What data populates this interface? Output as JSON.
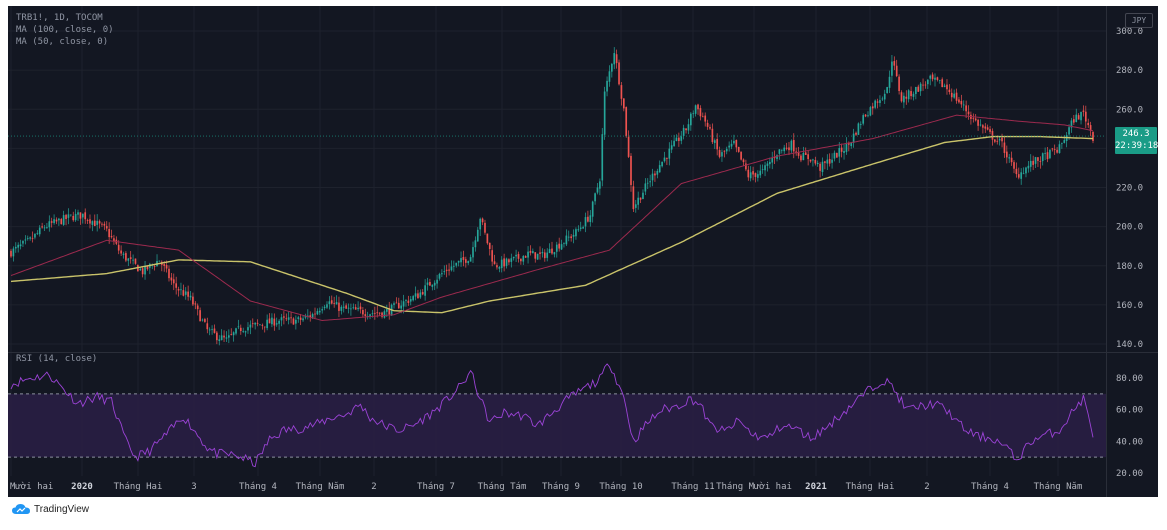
{
  "legend": {
    "symbol": "TRB1!, 1D, TOCOM",
    "ma100": "MA (100, close, 0)",
    "ma50": "MA (50, close, 0)",
    "rsi": "RSI (14, close)"
  },
  "currency": "JPY",
  "last_price": {
    "value": "246.3",
    "countdown": "22:39:18"
  },
  "brand": "TradingView",
  "colors": {
    "background": "#131722",
    "up": "#26a69a",
    "down": "#ef5350",
    "ma100": "#c9c36a",
    "ma50": "#9c2a4e",
    "rsi": "#9b43d6",
    "rsi_band": "#2a1f45",
    "badge": "#1a9c87"
  },
  "chart_data": [
    {
      "type": "candlestick",
      "title": "TRB1!, 1D, TOCOM",
      "y_axis": {
        "range": [
          135,
          305
        ],
        "ticks": [
          "300.0",
          "280.0",
          "260.0",
          "240.0",
          "220.0",
          "200.0",
          "180.0",
          "160.0",
          "140.0"
        ],
        "unit": "JPY"
      },
      "x_axis": {
        "ticks": [
          "Mười hai",
          "2020",
          "Tháng Hai",
          "3",
          "Tháng 4",
          "Tháng Năm",
          "2",
          "Tháng 7",
          "Tháng Tám",
          "Tháng 9",
          "Tháng 10",
          "Tháng 11",
          "Tháng Mười hai",
          "2021",
          "Tháng Hai",
          "2",
          "Tháng 4",
          "Tháng Năm"
        ]
      },
      "price_path": [
        [
          0,
          187
        ],
        [
          8,
          193
        ],
        [
          14,
          200
        ],
        [
          25,
          205
        ],
        [
          30,
          206
        ],
        [
          40,
          198
        ],
        [
          46,
          186
        ],
        [
          55,
          177
        ],
        [
          62,
          183
        ],
        [
          68,
          170
        ],
        [
          75,
          163
        ],
        [
          82,
          147
        ],
        [
          86,
          144
        ],
        [
          90,
          142
        ],
        [
          96,
          148
        ],
        [
          104,
          150
        ],
        [
          112,
          152
        ],
        [
          120,
          152
        ],
        [
          126,
          155
        ],
        [
          132,
          162
        ],
        [
          138,
          158
        ],
        [
          144,
          157
        ],
        [
          150,
          156
        ],
        [
          156,
          156
        ],
        [
          162,
          160
        ],
        [
          170,
          165
        ],
        [
          176,
          172
        ],
        [
          182,
          178
        ],
        [
          188,
          182
        ],
        [
          192,
          185
        ],
        [
          196,
          205
        ],
        [
          198,
          196
        ],
        [
          202,
          180
        ],
        [
          208,
          182
        ],
        [
          216,
          186
        ],
        [
          222,
          185
        ],
        [
          228,
          190
        ],
        [
          236,
          197
        ],
        [
          242,
          206
        ],
        [
          246,
          225
        ],
        [
          248,
          268
        ],
        [
          252,
          290
        ],
        [
          256,
          260
        ],
        [
          260,
          210
        ],
        [
          264,
          218
        ],
        [
          270,
          230
        ],
        [
          276,
          240
        ],
        [
          282,
          250
        ],
        [
          286,
          262
        ],
        [
          290,
          254
        ],
        [
          296,
          236
        ],
        [
          302,
          242
        ],
        [
          308,
          226
        ],
        [
          314,
          228
        ],
        [
          320,
          238
        ],
        [
          326,
          242
        ],
        [
          330,
          236
        ],
        [
          334,
          235
        ],
        [
          338,
          230
        ],
        [
          344,
          236
        ],
        [
          350,
          242
        ],
        [
          356,
          256
        ],
        [
          360,
          262
        ],
        [
          366,
          270
        ],
        [
          368,
          286
        ],
        [
          372,
          265
        ],
        [
          378,
          270
        ],
        [
          384,
          275
        ],
        [
          390,
          272
        ],
        [
          396,
          264
        ],
        [
          402,
          255
        ],
        [
          408,
          248
        ],
        [
          414,
          242
        ],
        [
          420,
          226
        ],
        [
          426,
          232
        ],
        [
          432,
          236
        ],
        [
          438,
          240
        ],
        [
          444,
          255
        ],
        [
          448,
          258
        ],
        [
          452,
          246
        ]
      ],
      "series": [
        {
          "name": "MA (100, close, 0)",
          "values": [
            [
              0,
              172
            ],
            [
              40,
              176
            ],
            [
              70,
              183
            ],
            [
              100,
              182
            ],
            [
              140,
              166
            ],
            [
              160,
              157
            ],
            [
              180,
              156
            ],
            [
              200,
              162
            ],
            [
              240,
              170
            ],
            [
              280,
              192
            ],
            [
              320,
              217
            ],
            [
              360,
              232
            ],
            [
              390,
              243
            ],
            [
              410,
              246
            ],
            [
              430,
              246
            ],
            [
              452,
              245
            ]
          ]
        },
        {
          "name": "MA (50, close, 0)",
          "values": [
            [
              0,
              175
            ],
            [
              40,
              193
            ],
            [
              70,
              188
            ],
            [
              100,
              162
            ],
            [
              130,
              152
            ],
            [
              160,
              155
            ],
            [
              180,
              164
            ],
            [
              220,
              178
            ],
            [
              250,
              188
            ],
            [
              280,
              222
            ],
            [
              320,
              236
            ],
            [
              360,
              245
            ],
            [
              395,
              257
            ],
            [
              420,
              254
            ],
            [
              440,
              252
            ],
            [
              452,
              249
            ]
          ]
        }
      ],
      "last_value": 246.3
    },
    {
      "type": "line",
      "title": "RSI (14, close)",
      "y_axis": {
        "range": [
          15,
          95
        ],
        "ticks": [
          "80.00",
          "60.00",
          "40.00",
          "20.00"
        ],
        "band": [
          30,
          70
        ]
      },
      "series": [
        {
          "name": "RSI (14, close)",
          "values": [
            [
              0,
              76
            ],
            [
              8,
              80
            ],
            [
              16,
              82
            ],
            [
              22,
              73
            ],
            [
              28,
              64
            ],
            [
              36,
              68
            ],
            [
              42,
              65
            ],
            [
              48,
              40
            ],
            [
              52,
              30
            ],
            [
              58,
              34
            ],
            [
              66,
              46
            ],
            [
              72,
              56
            ],
            [
              76,
              48
            ],
            [
              82,
              36
            ],
            [
              86,
              32
            ],
            [
              90,
              32
            ],
            [
              96,
              30
            ],
            [
              102,
              26
            ],
            [
              108,
              41
            ],
            [
              114,
              47
            ],
            [
              120,
              48
            ],
            [
              128,
              51
            ],
            [
              134,
              55
            ],
            [
              140,
              57
            ],
            [
              146,
              63
            ],
            [
              150,
              55
            ],
            [
              156,
              50
            ],
            [
              162,
              47
            ],
            [
              168,
              50
            ],
            [
              176,
              58
            ],
            [
              182,
              66
            ],
            [
              188,
              75
            ],
            [
              192,
              84
            ],
            [
              196,
              67
            ],
            [
              200,
              52
            ],
            [
              206,
              58
            ],
            [
              214,
              56
            ],
            [
              220,
              50
            ],
            [
              226,
              58
            ],
            [
              232,
              66
            ],
            [
              238,
              72
            ],
            [
              246,
              79
            ],
            [
              250,
              90
            ],
            [
              256,
              68
            ],
            [
              260,
              40
            ],
            [
              266,
              52
            ],
            [
              272,
              60
            ],
            [
              278,
              62
            ],
            [
              284,
              67
            ],
            [
              288,
              63
            ],
            [
              292,
              50
            ],
            [
              298,
              46
            ],
            [
              304,
              53
            ],
            [
              310,
              44
            ],
            [
              316,
              42
            ],
            [
              322,
              50
            ],
            [
              328,
              48
            ],
            [
              334,
              42
            ],
            [
              340,
              48
            ],
            [
              346,
              56
            ],
            [
              352,
              64
            ],
            [
              358,
              72
            ],
            [
              364,
              79
            ],
            [
              368,
              75
            ],
            [
              374,
              60
            ],
            [
              380,
              62
            ],
            [
              386,
              64
            ],
            [
              392,
              58
            ],
            [
              398,
              48
            ],
            [
              404,
              43
            ],
            [
              410,
              42
            ],
            [
              416,
              36
            ],
            [
              420,
              28
            ],
            [
              426,
              40
            ],
            [
              432,
              44
            ],
            [
              438,
              47
            ],
            [
              444,
              60
            ],
            [
              448,
              67
            ],
            [
              452,
              45
            ]
          ]
        }
      ]
    }
  ]
}
